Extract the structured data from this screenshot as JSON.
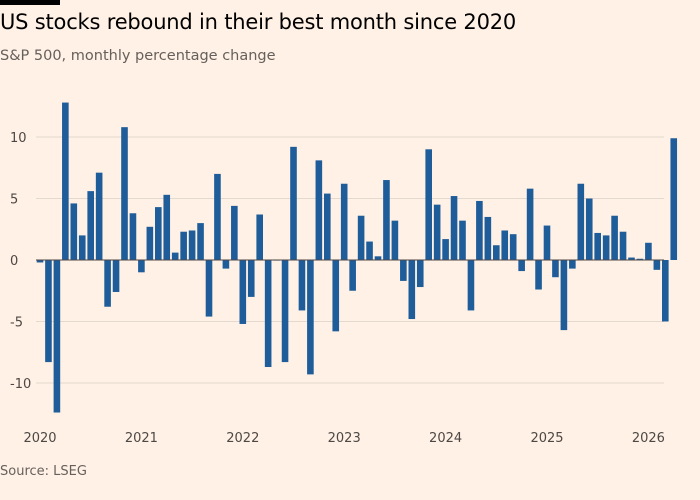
{
  "title": "US stocks rebound in their best month since 2020",
  "subtitle": "S&P 500, monthly percentage change",
  "source": "Source: LSEG",
  "chart_data": {
    "type": "bar",
    "title": "US stocks rebound in their best month since 2020",
    "subtitle": "S&P 500, monthly percentage change",
    "bar_color": "#1f5d9a",
    "background_color": "#fff1e5",
    "x_start": "2020-01",
    "x_tick_labels": [
      "2020",
      "2021",
      "2022",
      "2023",
      "2024",
      "2025",
      "2026"
    ],
    "y_tick_labels": [
      "10",
      "5",
      "0",
      "-5",
      "-10"
    ],
    "y_ticks": [
      10,
      5,
      0,
      -5,
      -10
    ],
    "ylim": [
      -12.5,
      13
    ],
    "grid": true,
    "categories": [
      "2020-01",
      "2020-02",
      "2020-03",
      "2020-04",
      "2020-05",
      "2020-06",
      "2020-07",
      "2020-08",
      "2020-09",
      "2020-10",
      "2020-11",
      "2020-12",
      "2021-01",
      "2021-02",
      "2021-03",
      "2021-04",
      "2021-05",
      "2021-06",
      "2021-07",
      "2021-08",
      "2021-09",
      "2021-10",
      "2021-11",
      "2021-12",
      "2022-01",
      "2022-02",
      "2022-03",
      "2022-04",
      "2022-05",
      "2022-06",
      "2022-07",
      "2022-08",
      "2022-09",
      "2022-10",
      "2022-11",
      "2022-12",
      "2023-01",
      "2023-02",
      "2023-03",
      "2023-04",
      "2023-05",
      "2023-06",
      "2023-07",
      "2023-08",
      "2023-09",
      "2023-10",
      "2023-11",
      "2023-12",
      "2024-01",
      "2024-02",
      "2024-03",
      "2024-04",
      "2024-05",
      "2024-06",
      "2024-07",
      "2024-08",
      "2024-09",
      "2024-10",
      "2024-11",
      "2024-12",
      "2025-01",
      "2025-02",
      "2025-03",
      "2025-04",
      "2025-05",
      "2025-06",
      "2025-07",
      "2025-08",
      "2025-09",
      "2025-10",
      "2025-11",
      "2025-12",
      "2026-01",
      "2026-02",
      "2026-03",
      "2026-04"
    ],
    "values": [
      -0.2,
      -8.3,
      -12.4,
      12.8,
      4.6,
      2.0,
      5.6,
      7.1,
      -3.8,
      -2.6,
      10.8,
      3.8,
      -1.0,
      2.7,
      4.3,
      5.3,
      0.6,
      2.3,
      2.4,
      3.0,
      -4.6,
      7.0,
      -0.7,
      4.4,
      -5.2,
      -3.0,
      3.7,
      -8.7,
      0.0,
      -8.3,
      9.2,
      -4.1,
      -9.3,
      8.1,
      5.4,
      -5.8,
      6.2,
      -2.5,
      3.6,
      1.5,
      0.3,
      6.5,
      3.2,
      -1.7,
      -4.8,
      -2.2,
      9.0,
      4.5,
      1.7,
      5.2,
      3.2,
      -4.1,
      4.8,
      3.5,
      1.2,
      2.4,
      2.1,
      -0.9,
      5.8,
      -2.4,
      2.8,
      -1.4,
      -5.7,
      -0.7,
      6.2,
      5.0,
      2.2,
      2.0,
      3.6,
      2.3,
      0.2,
      0.1,
      1.4,
      -0.8,
      -5.0,
      9.9
    ]
  }
}
